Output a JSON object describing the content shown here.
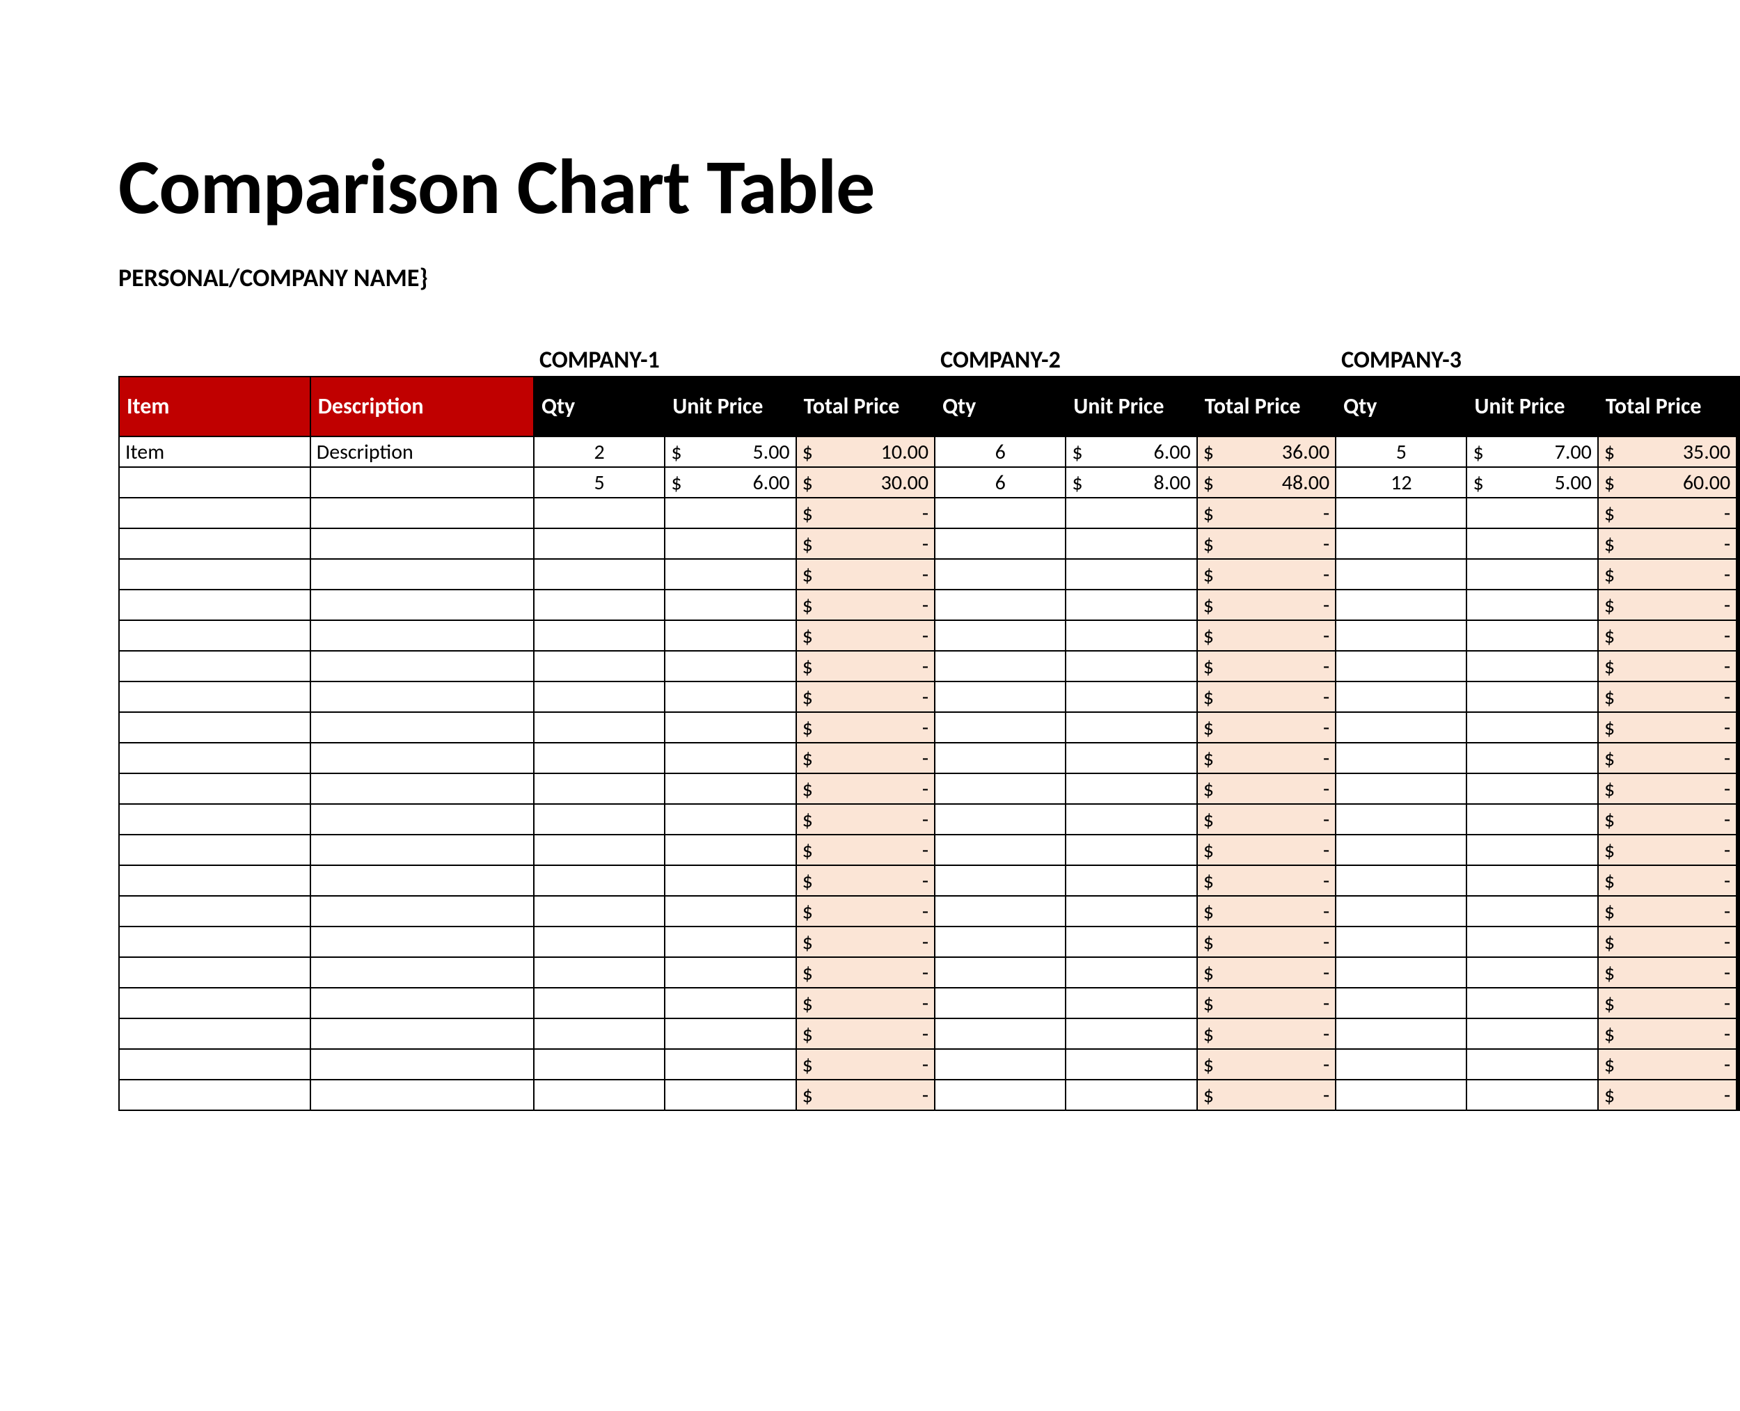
{
  "title": "Comparison Chart Table",
  "subtitle": "PERSONAL/COMPANY NAME}",
  "colors": {
    "header_red": "#c00000",
    "header_black": "#000000",
    "total_fill": "#fbe5d6",
    "page_bg": "#ffffff",
    "border": "#000000",
    "text": "#000000",
    "header_text": "#ffffff"
  },
  "typography": {
    "title_fontsize_pt": 56,
    "subtitle_fontsize_pt": 18,
    "header_fontsize_pt": 16,
    "body_fontsize_pt": 15,
    "font_family": "Calibri"
  },
  "columns": {
    "item": "Item",
    "description": "Description",
    "qty": "Qty",
    "unit_price": "Unit Price",
    "total_price": "Total\nPrice"
  },
  "companies": [
    {
      "label": "COMPANY-1"
    },
    {
      "label": "COMPANY-2"
    },
    {
      "label": "COMPANY-3"
    }
  ],
  "currency_symbol": "$",
  "empty_value": "-",
  "empty_row_count": 20,
  "rows": [
    {
      "item": "Item",
      "description": "Description",
      "c": [
        {
          "qty": "2",
          "unit": "5.00",
          "total": "10.00"
        },
        {
          "qty": "6",
          "unit": "6.00",
          "total": "36.00"
        },
        {
          "qty": "5",
          "unit": "7.00",
          "total": "35.00"
        }
      ]
    },
    {
      "item": "",
      "description": "",
      "c": [
        {
          "qty": "5",
          "unit": "6.00",
          "total": "30.00"
        },
        {
          "qty": "6",
          "unit": "8.00",
          "total": "48.00"
        },
        {
          "qty": "12",
          "unit": "5.00",
          "total": "60.00"
        }
      ]
    }
  ]
}
